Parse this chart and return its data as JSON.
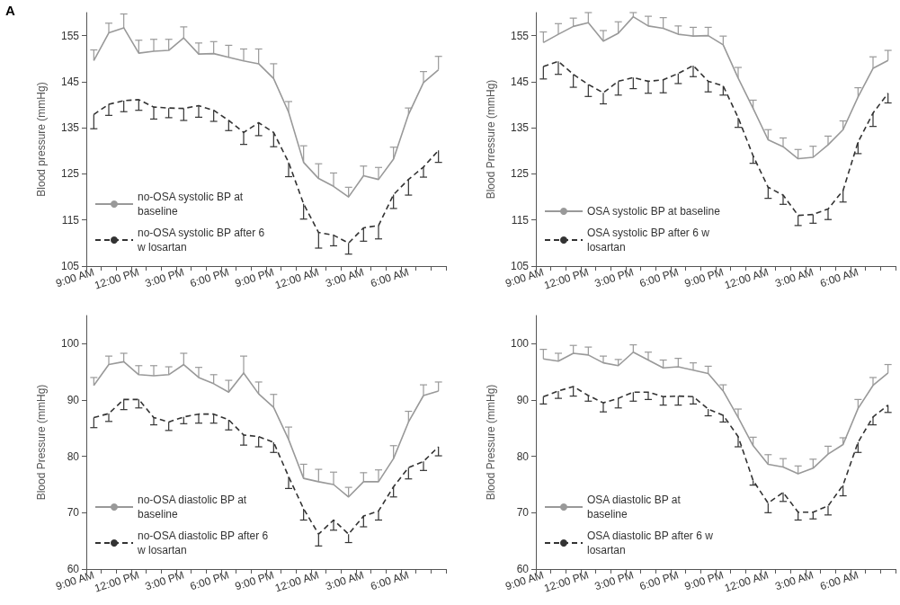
{
  "chart_data": [
    {
      "type": "line",
      "ylabel": "Blood pressure (mmHg)",
      "annotations": [
        "A"
      ],
      "categories": [
        "9:00 AM",
        null,
        null,
        "12:00 PM",
        null,
        null,
        "3:00 PM",
        null,
        null,
        "6:00 PM",
        null,
        null,
        "9:00 PM",
        null,
        null,
        "12:00 AM",
        null,
        null,
        "3:00 AM",
        null,
        null,
        "6:00 AM",
        null,
        null
      ],
      "ylim": [
        105,
        160
      ],
      "yticks": [
        105,
        115,
        125,
        135,
        145,
        155
      ],
      "grid": false,
      "legend": "bottom left",
      "marker": "none",
      "series": [
        {
          "name": "no-OSA systolic BP at baseline",
          "color": "#999999",
          "line_style": "solid",
          "values": [
            149.6,
            155.6,
            156.7,
            151.2,
            151.6,
            151.8,
            154.5,
            151.0,
            151.1,
            150.3,
            149.5,
            148.9,
            145.7,
            138.4,
            127.5,
            124.0,
            122.3,
            120.0,
            124.6,
            123.8,
            128.2,
            137.9,
            144.8,
            147.6
          ],
          "errors": [
            [
              149.6,
              151.9
            ],
            [
              155.6,
              157.7
            ],
            [
              156.7,
              159.7
            ],
            [
              151.2,
              154.0
            ],
            [
              151.6,
              154.2
            ],
            [
              151.8,
              154.2
            ],
            [
              154.5,
              156.9
            ],
            [
              151.0,
              153.4
            ],
            [
              151.1,
              153.7
            ],
            [
              150.3,
              152.9
            ],
            [
              149.5,
              152.1
            ],
            [
              148.9,
              152.1
            ],
            [
              145.7,
              148.9
            ],
            [
              138.4,
              140.7
            ],
            [
              127.5,
              131.1
            ],
            [
              124.0,
              127.2
            ],
            [
              122.3,
              125.2
            ],
            [
              120.0,
              122.1
            ],
            [
              124.6,
              126.7
            ],
            [
              123.8,
              126.4
            ],
            [
              128.2,
              130.8
            ],
            [
              137.9,
              139.3
            ],
            [
              144.8,
              147.2
            ],
            [
              147.6,
              150.5
            ]
          ]
        },
        {
          "name": "no-OSA systolic BP after 6 w losartan",
          "color": "#333333",
          "line_style": "dashed",
          "values": [
            137.9,
            140.1,
            140.9,
            141.1,
            139.5,
            139.3,
            139.2,
            139.8,
            138.8,
            136.6,
            134.0,
            136.1,
            134.0,
            127.5,
            118.5,
            112.3,
            111.7,
            110.0,
            113.3,
            113.8,
            120.5,
            123.8,
            126.5,
            130.1
          ],
          "errors": [
            [
              134.8,
              137.9
            ],
            [
              137.7,
              140.1
            ],
            [
              138.5,
              140.9
            ],
            [
              138.8,
              141.1
            ],
            [
              136.9,
              139.5
            ],
            [
              137.2,
              139.3
            ],
            [
              136.6,
              139.2
            ],
            [
              137.3,
              139.8
            ],
            [
              136.4,
              138.8
            ],
            [
              134.4,
              136.6
            ],
            [
              131.4,
              134.0
            ],
            [
              133.3,
              136.1
            ],
            [
              130.9,
              134.0
            ],
            [
              124.4,
              127.5
            ],
            [
              115.2,
              118.5
            ],
            [
              108.9,
              112.3
            ],
            [
              109.4,
              111.7
            ],
            [
              107.6,
              110.0
            ],
            [
              110.4,
              113.3
            ],
            [
              110.9,
              113.8
            ],
            [
              117.5,
              120.5
            ],
            [
              120.4,
              123.8
            ],
            [
              124.3,
              126.5
            ],
            [
              127.5,
              130.1
            ]
          ]
        }
      ]
    },
    {
      "type": "line",
      "ylabel": "Blood Prressure (mmHg)",
      "categories": [
        "9:00 AM",
        null,
        null,
        "12:00 PM",
        null,
        null,
        "3:00 PM",
        null,
        null,
        "6:00 PM",
        null,
        null,
        "9:00 PM",
        null,
        null,
        "12:00 AM",
        null,
        null,
        "3:00 AM",
        null,
        null,
        "6:00 AM",
        null,
        null
      ],
      "ylim": [
        105,
        160
      ],
      "yticks": [
        105,
        115,
        125,
        135,
        145,
        155
      ],
      "grid": false,
      "legend": "bottom left",
      "marker": "none",
      "series": [
        {
          "name": "OSA systolic BP at baseline",
          "color": "#999999",
          "line_style": "solid",
          "values": [
            153.5,
            155.3,
            157.0,
            157.8,
            153.8,
            155.5,
            159.1,
            157.1,
            156.6,
            155.3,
            154.9,
            155.0,
            153.0,
            145.8,
            139.2,
            132.4,
            130.9,
            128.3,
            128.6,
            131.3,
            134.6,
            141.7,
            147.9,
            149.6
          ],
          "errors": [
            [
              153.5,
              155.8
            ],
            [
              155.3,
              157.6
            ],
            [
              157.0,
              158.8
            ],
            [
              157.8,
              160.0
            ],
            [
              153.8,
              156.1
            ],
            [
              155.5,
              158.0
            ],
            [
              159.1,
              160.0
            ],
            [
              157.1,
              159.2
            ],
            [
              156.6,
              158.9
            ],
            [
              155.3,
              157.1
            ],
            [
              154.9,
              156.8
            ],
            [
              155.0,
              156.8
            ],
            [
              153.0,
              154.9
            ],
            [
              145.8,
              148.1
            ],
            [
              139.2,
              141.0
            ],
            [
              132.4,
              134.6
            ],
            [
              130.9,
              132.8
            ],
            [
              128.3,
              130.3
            ],
            [
              128.6,
              131.0
            ],
            [
              131.3,
              133.2
            ],
            [
              134.6,
              136.5
            ],
            [
              141.7,
              143.7
            ],
            [
              147.9,
              150.4
            ],
            [
              149.6,
              151.8
            ]
          ]
        },
        {
          "name": "OSA systolic BP after 6 w losartan",
          "color": "#333333",
          "line_style": "dashed",
          "values": [
            148.3,
            149.4,
            146.6,
            144.4,
            142.6,
            145.1,
            145.9,
            145.1,
            145.4,
            146.8,
            148.5,
            145.1,
            144.1,
            137.2,
            128.9,
            122.1,
            120.4,
            116.0,
            116.2,
            117.4,
            121.4,
            131.9,
            138.2,
            142.5
          ],
          "errors": [
            [
              145.6,
              148.3
            ],
            [
              146.6,
              149.4
            ],
            [
              143.8,
              146.6
            ],
            [
              141.8,
              144.4
            ],
            [
              140.2,
              142.6
            ],
            [
              142.1,
              145.1
            ],
            [
              143.5,
              145.9
            ],
            [
              142.5,
              145.1
            ],
            [
              142.6,
              145.4
            ],
            [
              144.6,
              146.8
            ],
            [
              146.1,
              148.5
            ],
            [
              142.8,
              145.1
            ],
            [
              142.1,
              144.1
            ],
            [
              135.1,
              137.2
            ],
            [
              127.3,
              128.9
            ],
            [
              119.7,
              122.1
            ],
            [
              118.4,
              120.4
            ],
            [
              113.8,
              116.0
            ],
            [
              114.3,
              116.2
            ],
            [
              115.1,
              117.4
            ],
            [
              118.9,
              121.4
            ],
            [
              129.4,
              131.9
            ],
            [
              135.3,
              138.2
            ],
            [
              140.4,
              142.5
            ]
          ]
        }
      ]
    },
    {
      "type": "line",
      "ylabel": "Blood Pressure (mmHg)",
      "categories": [
        "9:00 AM",
        null,
        null,
        "12:00 PM",
        null,
        null,
        "3:00 PM",
        null,
        null,
        "6:00 PM",
        null,
        null,
        "9:00 PM",
        null,
        null,
        "12:00 AM",
        null,
        null,
        "3:00 AM",
        null,
        null,
        "6:00 AM",
        null,
        null
      ],
      "ylim": [
        60,
        105
      ],
      "yticks": [
        60,
        70,
        80,
        90,
        100
      ],
      "grid": false,
      "legend": "bottom left",
      "marker": "none",
      "series": [
        {
          "name": "no-OSA diastolic BP at baseline",
          "color": "#999999",
          "line_style": "solid",
          "values": [
            92.6,
            96.3,
            96.8,
            94.5,
            94.3,
            94.5,
            96.3,
            94.0,
            92.9,
            91.4,
            94.8,
            91.1,
            88.7,
            83.0,
            76.1,
            75.5,
            75.0,
            72.8,
            75.5,
            75.5,
            79.6,
            86.1,
            90.8,
            91.6
          ],
          "errors": [
            [
              92.6,
              94.0
            ],
            [
              96.3,
              97.8
            ],
            [
              96.8,
              98.3
            ],
            [
              94.5,
              96.1
            ],
            [
              94.3,
              96.1
            ],
            [
              94.5,
              95.9
            ],
            [
              96.3,
              98.3
            ],
            [
              94.0,
              95.8
            ],
            [
              92.9,
              94.5
            ],
            [
              91.4,
              93.5
            ],
            [
              94.8,
              97.8
            ],
            [
              91.1,
              93.2
            ],
            [
              88.7,
              91.0
            ],
            [
              83.0,
              85.2
            ],
            [
              76.1,
              78.6
            ],
            [
              75.5,
              77.7
            ],
            [
              75.0,
              77.2
            ],
            [
              72.8,
              74.5
            ],
            [
              75.5,
              77.1
            ],
            [
              75.5,
              77.6
            ],
            [
              79.6,
              81.9
            ],
            [
              86.1,
              88.0
            ],
            [
              90.8,
              92.7
            ],
            [
              91.6,
              93.2
            ]
          ]
        },
        {
          "name": "no-OSA diastolic BP after 6 w losartan",
          "color": "#333333",
          "line_style": "dashed",
          "values": [
            86.9,
            87.6,
            90.1,
            90.1,
            86.9,
            86.1,
            87.0,
            87.5,
            87.5,
            86.5,
            83.8,
            83.5,
            82.5,
            76.4,
            70.7,
            66.2,
            68.7,
            66.2,
            69.4,
            70.3,
            74.6,
            78.0,
            79.1,
            81.7
          ],
          "errors": [
            [
              85.1,
              86.9
            ],
            [
              86.2,
              87.6
            ],
            [
              88.3,
              90.1
            ],
            [
              88.6,
              90.1
            ],
            [
              85.6,
              86.9
            ],
            [
              84.6,
              86.1
            ],
            [
              85.8,
              87.0
            ],
            [
              85.9,
              87.5
            ],
            [
              85.9,
              87.5
            ],
            [
              84.7,
              86.5
            ],
            [
              82.0,
              83.8
            ],
            [
              81.7,
              83.5
            ],
            [
              80.7,
              82.5
            ],
            [
              74.3,
              76.4
            ],
            [
              68.7,
              70.7
            ],
            [
              64.1,
              66.2
            ],
            [
              66.9,
              68.7
            ],
            [
              64.7,
              66.2
            ],
            [
              67.5,
              69.4
            ],
            [
              68.7,
              70.3
            ],
            [
              72.8,
              74.6
            ],
            [
              76.0,
              78.0
            ],
            [
              77.5,
              79.1
            ],
            [
              80.1,
              81.7
            ]
          ]
        }
      ]
    },
    {
      "type": "line",
      "ylabel": "Blood Pressure (mmHg)",
      "categories": [
        "9:00 AM",
        null,
        null,
        "12:00 PM",
        null,
        null,
        "3:00 PM",
        null,
        null,
        "6:00 PM",
        null,
        null,
        "9:00 PM",
        null,
        null,
        "12:00 AM",
        null,
        null,
        "3:00 AM",
        null,
        null,
        "6:00 AM",
        null,
        null
      ],
      "ylim": [
        60,
        105
      ],
      "yticks": [
        60,
        70,
        80,
        90,
        100
      ],
      "grid": false,
      "legend": "bottom left",
      "marker": "none",
      "series": [
        {
          "name": "OSA diastolic BP at baseline",
          "color": "#999999",
          "line_style": "solid",
          "values": [
            97.3,
            96.9,
            98.3,
            98.0,
            96.6,
            96.1,
            98.5,
            97.1,
            95.7,
            95.9,
            95.3,
            94.7,
            91.6,
            86.9,
            81.9,
            78.6,
            78.1,
            76.9,
            77.9,
            80.4,
            82.1,
            88.5,
            92.6,
            94.8
          ],
          "errors": [
            [
              97.3,
              99.0
            ],
            [
              96.9,
              98.3
            ],
            [
              98.3,
              99.7
            ],
            [
              98.0,
              99.4
            ],
            [
              96.6,
              97.8
            ],
            [
              96.1,
              97.2
            ],
            [
              98.5,
              99.8
            ],
            [
              97.1,
              98.5
            ],
            [
              95.7,
              97.1
            ],
            [
              95.9,
              97.4
            ],
            [
              95.3,
              96.6
            ],
            [
              94.7,
              96.0
            ],
            [
              91.6,
              92.7
            ],
            [
              86.9,
              88.4
            ],
            [
              81.9,
              83.4
            ],
            [
              78.6,
              80.3
            ],
            [
              78.1,
              79.6
            ],
            [
              76.9,
              78.3
            ],
            [
              77.9,
              79.5
            ],
            [
              80.4,
              81.8
            ],
            [
              82.1,
              83.3
            ],
            [
              88.5,
              90.1
            ],
            [
              92.6,
              94.0
            ],
            [
              94.8,
              96.3
            ]
          ]
        },
        {
          "name": "OSA diastolic BP after 6 w losartan",
          "color": "#333333",
          "line_style": "dashed",
          "values": [
            90.6,
            91.6,
            92.4,
            90.8,
            89.5,
            90.3,
            91.4,
            91.4,
            90.6,
            90.7,
            90.6,
            88.4,
            87.3,
            83.5,
            75.7,
            71.7,
            73.6,
            70.1,
            70.1,
            71.2,
            74.9,
            82.5,
            87.0,
            89.1
          ],
          "errors": [
            [
              89.3,
              90.6
            ],
            [
              90.3,
              91.6
            ],
            [
              90.7,
              92.4
            ],
            [
              89.8,
              90.8
            ],
            [
              87.9,
              89.5
            ],
            [
              88.6,
              90.3
            ],
            [
              89.8,
              91.4
            ],
            [
              90.1,
              91.4
            ],
            [
              89.1,
              90.6
            ],
            [
              89.1,
              90.7
            ],
            [
              89.3,
              90.6
            ],
            [
              87.2,
              88.4
            ],
            [
              86.1,
              87.3
            ],
            [
              81.7,
              83.5
            ],
            [
              74.9,
              75.7
            ],
            [
              70.0,
              71.7
            ],
            [
              72.0,
              73.6
            ],
            [
              68.7,
              70.1
            ],
            [
              68.9,
              70.1
            ],
            [
              69.6,
              71.2
            ],
            [
              73.0,
              74.9
            ],
            [
              80.7,
              82.5
            ],
            [
              85.6,
              87.0
            ],
            [
              87.8,
              89.1
            ]
          ]
        }
      ]
    }
  ]
}
